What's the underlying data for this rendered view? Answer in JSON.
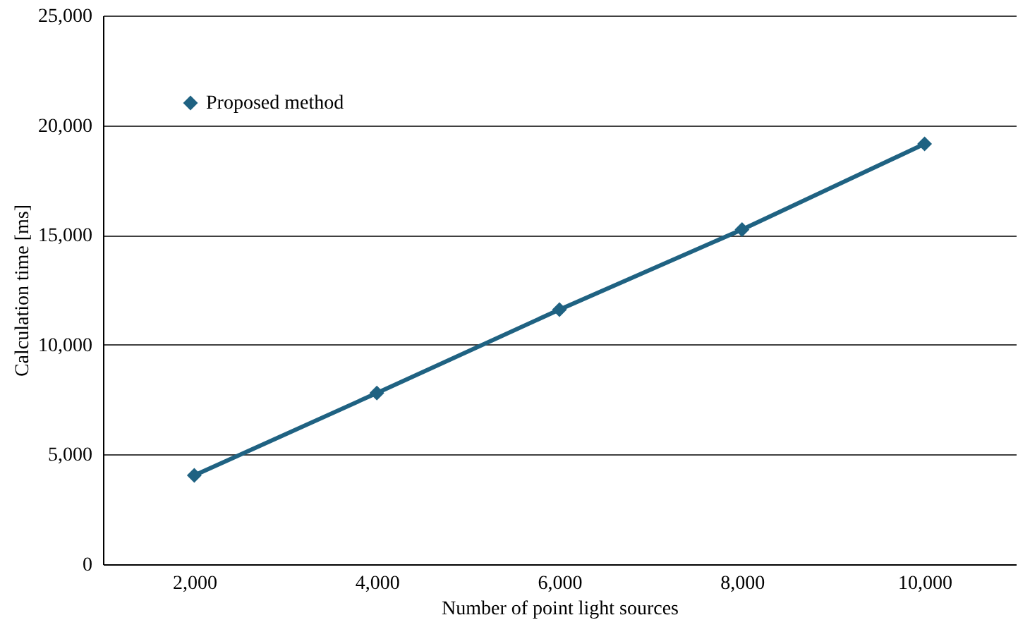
{
  "chart_data": {
    "type": "line",
    "xlabel": "Number of point light sources",
    "ylabel": "Calculation time [ms]",
    "categories": [
      "2,000",
      "4,000",
      "6,000",
      "8,000",
      "10,000"
    ],
    "series": [
      {
        "name": "Proposed method",
        "color": "#1f6282",
        "values": [
          4050,
          7800,
          11600,
          15250,
          19150
        ]
      }
    ],
    "ylim": [
      0,
      25000
    ],
    "yticks": [
      0,
      {
        "value": 5000,
        "label": "5,000"
      },
      {
        "value": 10000,
        "label": "10,000"
      },
      {
        "value": 15000,
        "label": "15,000"
      },
      {
        "value": 20000,
        "label": "20,000"
      },
      {
        "value": 25000,
        "label": "25,000"
      }
    ],
    "grid": "y",
    "legend": "top left",
    "marker": "diamond",
    "line_style": "solid"
  }
}
